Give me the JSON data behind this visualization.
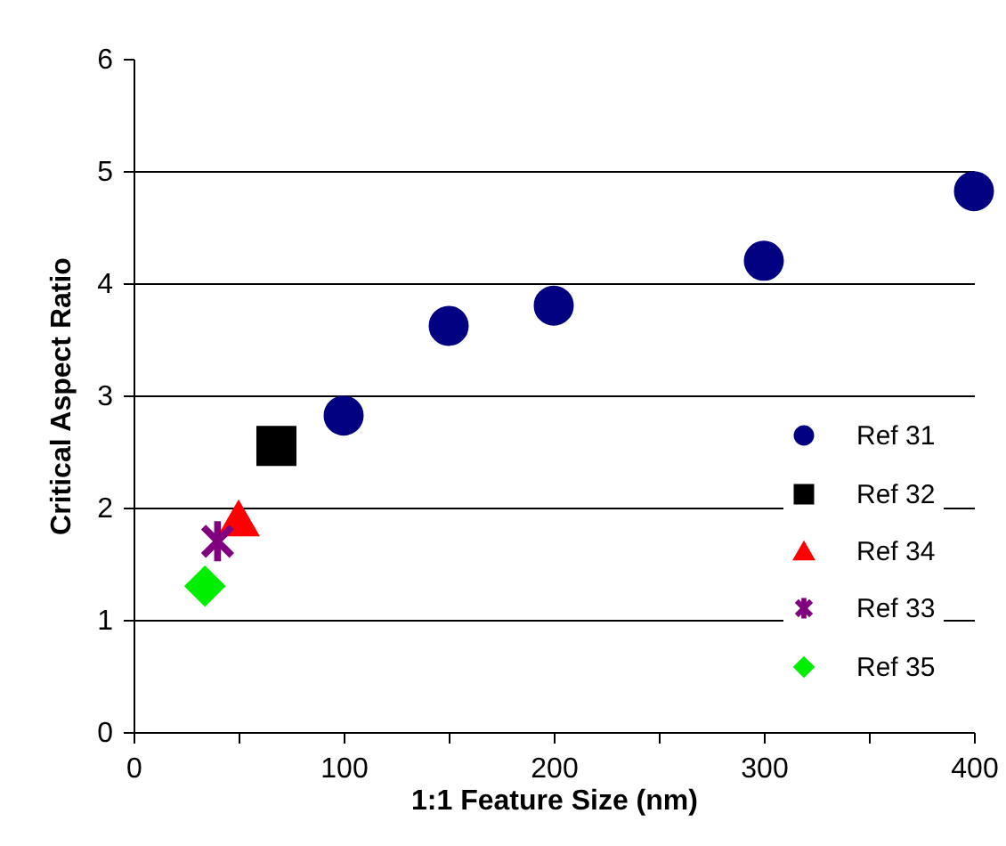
{
  "chart_data": {
    "type": "scatter",
    "xlabel": "1:1 Feature Size (nm)",
    "ylabel": "Critical Aspect Ratio",
    "xlim": [
      0,
      400
    ],
    "xticks": [
      0,
      {
        "value": 50,
        "label": null
      },
      100,
      {
        "value": 150,
        "label": null
      },
      200,
      {
        "value": 250,
        "label": null
      },
      300,
      {
        "value": 350,
        "label": null
      },
      400
    ],
    "ylim": [
      0,
      6
    ],
    "yticks": [
      0,
      1,
      2,
      3,
      4,
      5,
      6
    ],
    "grid": "y",
    "legend": "bottom right",
    "series": [
      {
        "name": "Ref 31",
        "color": "#000080",
        "marker": "circle",
        "x": [
          100,
          150,
          200,
          300,
          400
        ],
        "values": [
          2.82,
          3.62,
          3.8,
          4.2,
          4.82
        ]
      },
      {
        "name": "Ref 32",
        "color": "#000000",
        "marker": "square",
        "x": [
          68
        ],
        "values": [
          2.55
        ]
      },
      {
        "name": "Ref 34",
        "color": "#ff0000",
        "marker": "triangle",
        "x": [
          50
        ],
        "values": [
          1.9
        ]
      },
      {
        "name": "Ref 33",
        "color": "#800080",
        "marker": "cross",
        "x": [
          40
        ],
        "values": [
          1.7
        ]
      },
      {
        "name": "Ref 35",
        "color": "#00ee00",
        "marker": "diamond",
        "x": [
          34
        ],
        "values": [
          1.3
        ]
      }
    ]
  }
}
